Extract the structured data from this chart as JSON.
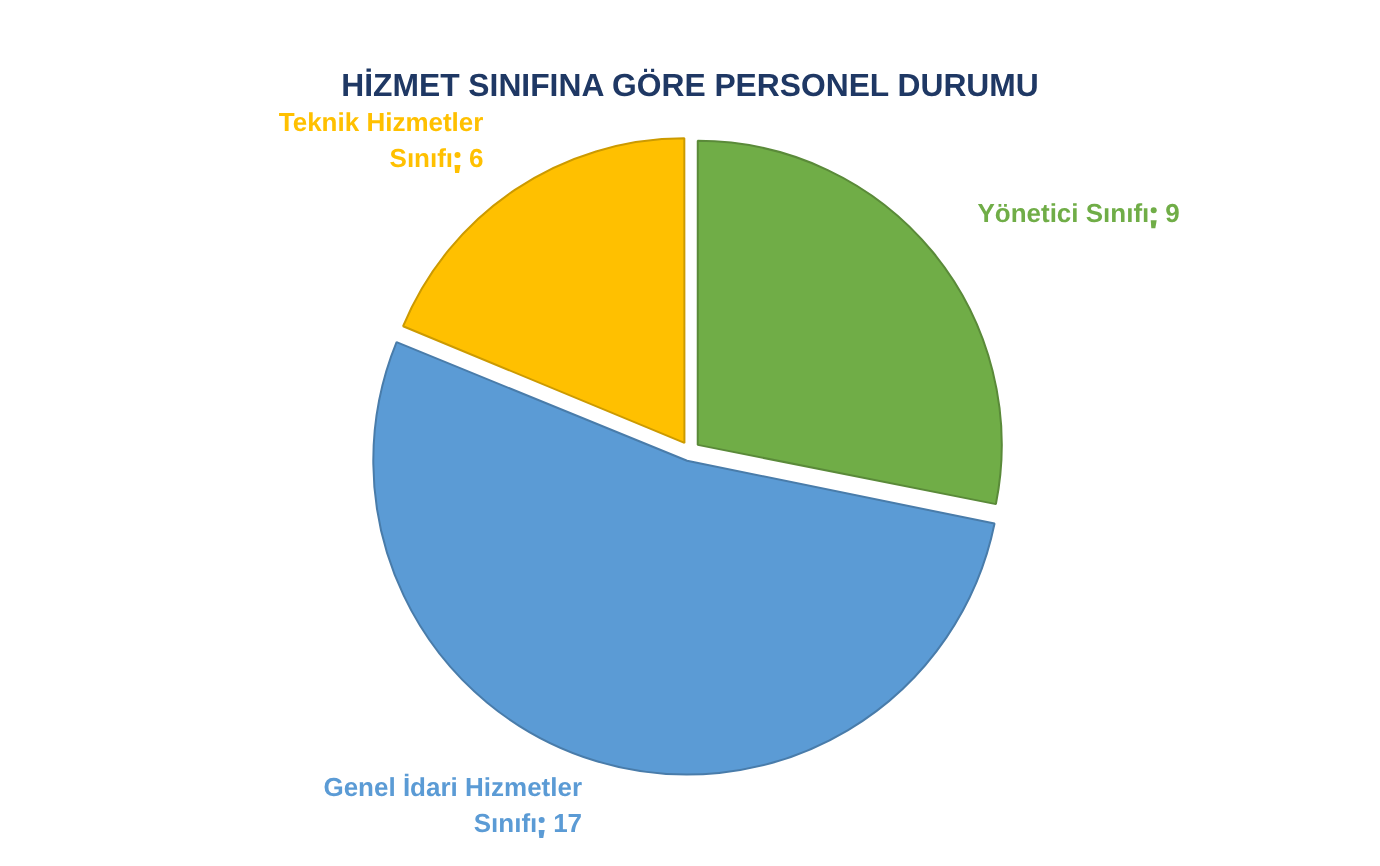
{
  "chart_data": {
    "type": "pie",
    "title": "HİZMET SINIFINA GÖRE PERSONEL DURUMU",
    "categories": [
      "Yönetici Sınıfı",
      "Genel İdari Hizmetler Sınıfı",
      "Teknik Hizmetler Sınıfı"
    ],
    "values": [
      9,
      17,
      6
    ],
    "colors": [
      "#70ad47",
      "#5b9bd5",
      "#ffc000"
    ],
    "data_labels": true
  }
}
